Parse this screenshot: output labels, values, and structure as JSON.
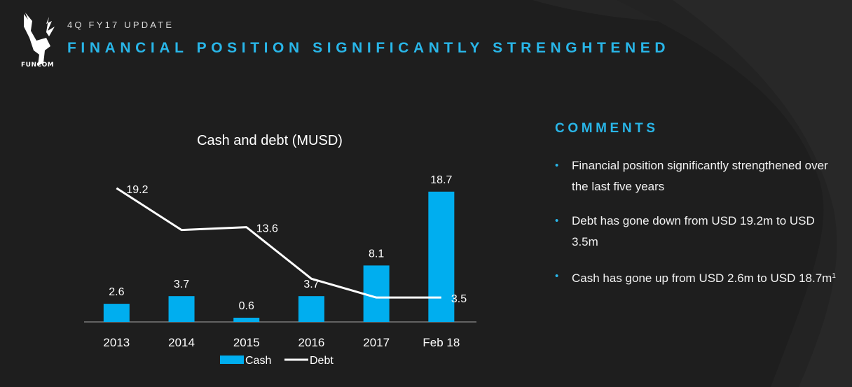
{
  "header": {
    "kicker": "4Q FY17 UPDATE",
    "headline": "FINANCIAL POSITION SIGNIFICANTLY STRENGHTENED",
    "logo_text": "FUNCOM"
  },
  "colors": {
    "background": "#1e1e1e",
    "accent": "#29b6e8",
    "cash_bar": "#00aeef",
    "debt_line": "#ffffff"
  },
  "chart_data": {
    "type": "bar",
    "title": "Cash and debt (MUSD)",
    "categories": [
      "2013",
      "2014",
      "2015",
      "2016",
      "2017",
      "Feb 18"
    ],
    "series": [
      {
        "name": "Cash",
        "kind": "bar",
        "values": [
          2.6,
          3.7,
          0.6,
          3.7,
          8.1,
          18.7
        ],
        "labels": [
          "2.6",
          "3.7",
          "0.6",
          "3.7",
          "8.1",
          "18.7"
        ]
      },
      {
        "name": "Debt",
        "kind": "line",
        "values": [
          19.2,
          13.2,
          13.6,
          6.2,
          3.5,
          3.5
        ],
        "labels": [
          "19.2",
          "",
          "13.6",
          "",
          "",
          "3.5"
        ]
      }
    ],
    "ylim": [
      0,
      22
    ],
    "grid": false,
    "legend": "bottom"
  },
  "comments": {
    "title": "COMMENTS",
    "items": [
      {
        "text": "Financial position significantly strengthened over the last five years",
        "sup": ""
      },
      {
        "text": "Debt has gone down from USD 19.2m to USD 3.5m",
        "sup": ""
      },
      {
        "text": "Cash has gone up from USD 2.6m to USD 18.7m",
        "sup": "1"
      }
    ],
    "bullet": "•"
  }
}
